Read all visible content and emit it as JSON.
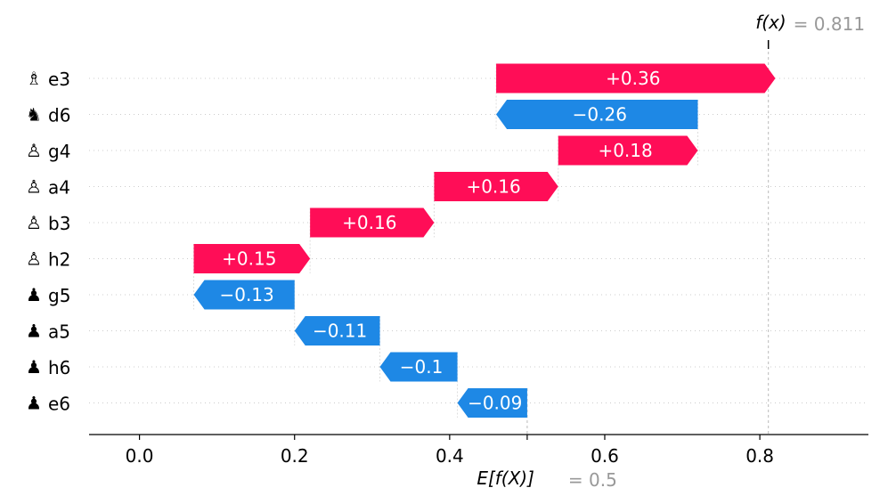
{
  "chart_data": {
    "type": "waterfall",
    "title": "",
    "xlabel": "",
    "ylabel": "",
    "base_value": 0.5,
    "output_value": 0.811,
    "base_label": {
      "expr": "E[f(X)]",
      "value_text": "= 0.5"
    },
    "output_label": {
      "expr": "f(x)",
      "value_text": "= 0.811"
    },
    "xlim": [
      -0.065,
      0.94
    ],
    "x_ticks": [
      0.0,
      0.2,
      0.4,
      0.6,
      0.8
    ],
    "x_tick_labels": [
      "0.0",
      "0.2",
      "0.4",
      "0.6",
      "0.8"
    ],
    "features": [
      {
        "piece_glyph": "♗",
        "square": "e3",
        "value": 0.36,
        "label": "+0.36"
      },
      {
        "piece_glyph": "♞",
        "square": "d6",
        "value": -0.26,
        "label": "−0.26"
      },
      {
        "piece_glyph": "♙",
        "square": "g4",
        "value": 0.18,
        "label": "+0.18"
      },
      {
        "piece_glyph": "♙",
        "square": "a4",
        "value": 0.16,
        "label": "+0.16"
      },
      {
        "piece_glyph": "♙",
        "square": "b3",
        "value": 0.16,
        "label": "+0.16"
      },
      {
        "piece_glyph": "♙",
        "square": "h2",
        "value": 0.15,
        "label": "+0.15"
      },
      {
        "piece_glyph": "♟",
        "square": "g5",
        "value": -0.13,
        "label": "−0.13"
      },
      {
        "piece_glyph": "♟",
        "square": "a5",
        "value": -0.11,
        "label": "−0.11"
      },
      {
        "piece_glyph": "♟",
        "square": "h6",
        "value": -0.1,
        "label": "−0.1"
      },
      {
        "piece_glyph": "♟",
        "square": "e6",
        "value": -0.09,
        "label": "−0.09"
      }
    ],
    "colors": {
      "positive": "#ff0d57",
      "negative": "#1e88e5",
      "value_gray": "#999999",
      "axis": "#000000",
      "gridline": "#cccccc"
    }
  }
}
